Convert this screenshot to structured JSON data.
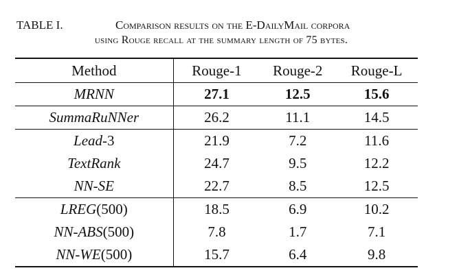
{
  "caption": {
    "label": "TABLE I.",
    "title": "Comparison results on the E-DailyMail corpora",
    "subtitle": "using Rouge recall at the summary length of 75 bytes."
  },
  "table": {
    "headers": [
      "Method",
      "Rouge-1",
      "Rouge-2",
      "Rouge-L"
    ],
    "groups": [
      [
        {
          "method": "MRNN",
          "suffix": "",
          "r1": "27.1",
          "r2": "12.5",
          "rl": "15.6",
          "bold": true
        }
      ],
      [
        {
          "method": "SummaRuNNer",
          "suffix": "",
          "r1": "26.2",
          "r2": "11.1",
          "rl": "14.5",
          "bold": false
        }
      ],
      [
        {
          "method": "Lead",
          "suffix": "-3",
          "r1": "21.9",
          "r2": "7.2",
          "rl": "11.6",
          "bold": false
        },
        {
          "method": "TextRank",
          "suffix": "",
          "r1": "24.7",
          "r2": "9.5",
          "rl": "12.2",
          "bold": false
        },
        {
          "method": "NN-SE",
          "suffix": "",
          "r1": "22.7",
          "r2": "8.5",
          "rl": "12.5",
          "bold": false
        }
      ],
      [
        {
          "method": "LREG",
          "suffix": "(500)",
          "r1": "18.5",
          "r2": "6.9",
          "rl": "10.2",
          "bold": false
        },
        {
          "method": "NN-ABS",
          "suffix": "(500)",
          "r1": "7.8",
          "r2": "1.7",
          "rl": "7.1",
          "bold": false
        },
        {
          "method": "NN-WE",
          "suffix": "(500)",
          "r1": "15.7",
          "r2": "6.4",
          "rl": "9.8",
          "bold": false
        }
      ]
    ]
  }
}
